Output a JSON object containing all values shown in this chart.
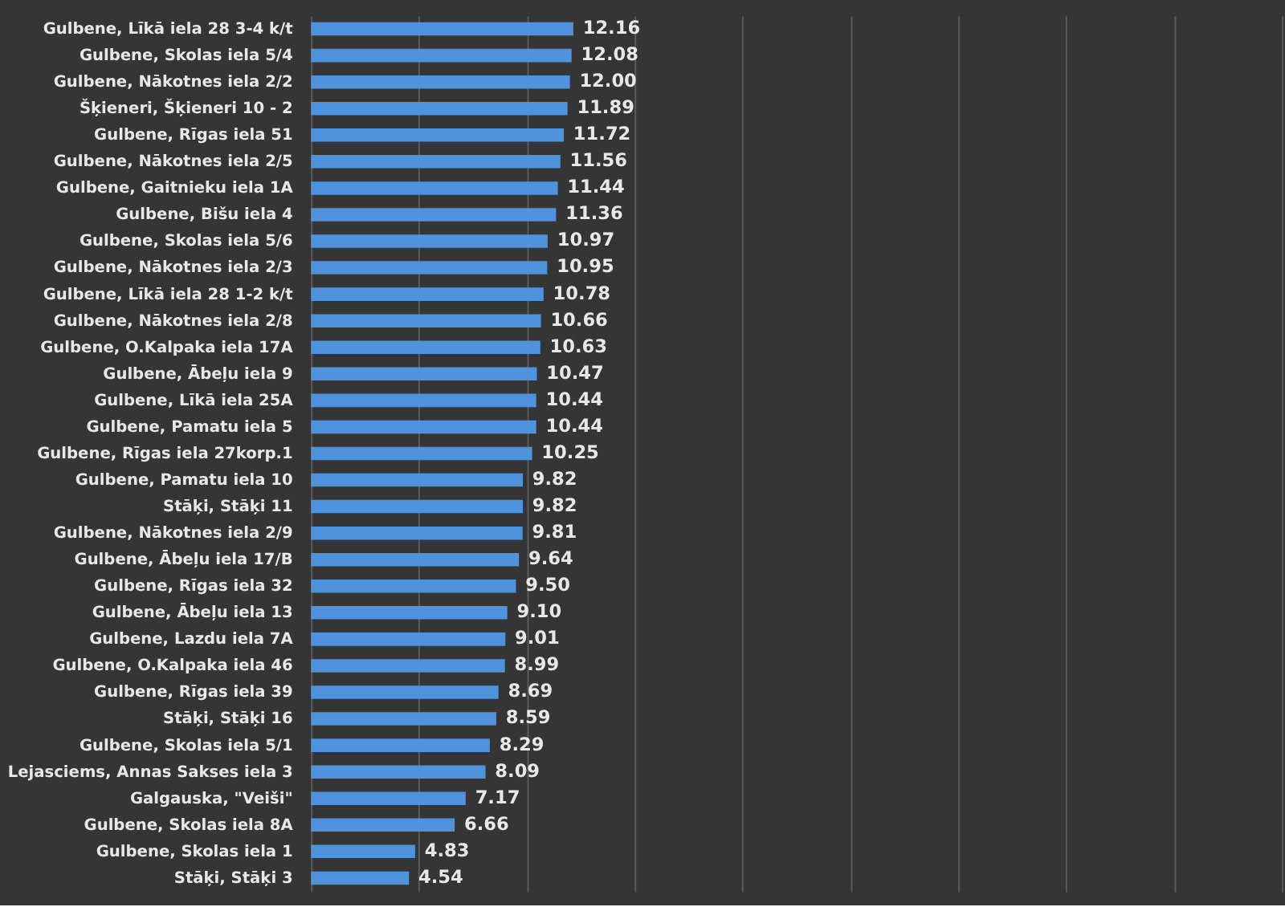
{
  "chart_data": {
    "type": "bar",
    "orientation": "horizontal",
    "categories": [
      "Gulbene, Līkā iela 28 3-4 k/t",
      "Gulbene, Skolas iela 5/4",
      "Gulbene, Nākotnes iela 2/2",
      "Šķieneri, Šķieneri 10 - 2",
      "Gulbene, Rīgas iela 51",
      "Gulbene, Nākotnes iela 2/5",
      "Gulbene, Gaitnieku iela 1A",
      "Gulbene, Bišu iela 4",
      "Gulbene, Skolas iela 5/6",
      "Gulbene, Nākotnes iela 2/3",
      "Gulbene, Līkā iela 28 1-2 k/t",
      "Gulbene, Nākotnes iela 2/8",
      "Gulbene, O.Kalpaka iela 17A",
      "Gulbene, Ābeļu iela 9",
      "Gulbene, Līkā iela 25A",
      "Gulbene, Pamatu iela 5",
      "Gulbene, Rīgas iela 27korp.1",
      "Gulbene, Pamatu iela 10",
      "Stāķi, Stāķi 11",
      "Gulbene, Nākotnes iela 2/9",
      "Gulbene, Ābeļu iela 17/B",
      "Gulbene, Rīgas iela 32",
      "Gulbene, Ābeļu iela 13",
      "Gulbene, Lazdu iela 7A",
      "Gulbene, O.Kalpaka iela 46",
      "Gulbene, Rīgas iela 39",
      "Stāķi, Stāķi 16",
      "Gulbene, Skolas iela 5/1",
      "Lejasciems, Annas Sakses iela 3",
      "Galgauska, \"Veiši\"",
      "Gulbene, Skolas iela 8A",
      "Gulbene, Skolas iela 1",
      "Stāķi, Stāķi 3"
    ],
    "values": [
      12.16,
      12.08,
      12.0,
      11.89,
      11.72,
      11.56,
      11.44,
      11.36,
      10.97,
      10.95,
      10.78,
      10.66,
      10.63,
      10.47,
      10.44,
      10.44,
      10.25,
      9.82,
      9.82,
      9.81,
      9.64,
      9.5,
      9.1,
      9.01,
      8.99,
      8.69,
      8.59,
      8.29,
      8.09,
      7.17,
      6.66,
      4.83,
      4.54
    ],
    "value_labels": [
      "12.16",
      "12.08",
      "12.00",
      "11.89",
      "11.72",
      "11.56",
      "11.44",
      "11.36",
      "10.97",
      "10.95",
      "10.78",
      "10.66",
      "10.63",
      "10.47",
      "10.44",
      "10.44",
      "10.25",
      "9.82",
      "9.82",
      "9.81",
      "9.64",
      "9.50",
      "9.10",
      "9.01",
      "8.99",
      "8.69",
      "8.59",
      "8.29",
      "8.09",
      "7.17",
      "6.66",
      "4.83",
      "4.54"
    ],
    "color": "#4f93dc",
    "xlim": [
      0,
      45
    ],
    "xticks": [
      {
        "value": 0,
        "label": null
      },
      {
        "value": 5,
        "label": null
      },
      {
        "value": 10,
        "label": null
      },
      {
        "value": 15,
        "label": null
      },
      {
        "value": 20,
        "label": null
      },
      {
        "value": 25,
        "label": null
      },
      {
        "value": 30,
        "label": null
      },
      {
        "value": 35,
        "label": null
      },
      {
        "value": 40,
        "label": null
      },
      {
        "value": 45,
        "label": null
      }
    ],
    "grid": "x",
    "tick_labels": "y"
  }
}
